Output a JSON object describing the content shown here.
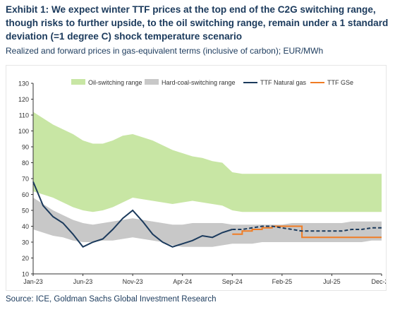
{
  "header": {
    "title": "Exhibit 1: We expect winter TTF prices at the top end of the C2G switching range, though risks to further upside, to the oil switching range, remain under a 1 standard deviation (=1 degree C) shock temperature scenario",
    "subtitle": "Realized and forward prices in gas-equivalent terms (inclusive of carbon); EUR/MWh"
  },
  "footer": {
    "source": "Source: ICE, Goldman Sachs Global Investment Research"
  },
  "colors": {
    "oil": "#c8e6a4",
    "coal": "#c8c8c8",
    "ttf": "#1b3a5c",
    "gse": "#f07c24"
  },
  "chart_data": {
    "type": "line",
    "title": "",
    "xlabel": "",
    "ylabel": "",
    "ylim": [
      10,
      130
    ],
    "yticks": [
      10,
      20,
      30,
      40,
      50,
      60,
      70,
      80,
      90,
      100,
      110,
      120,
      130
    ],
    "xticks": [
      "Jan-23",
      "Jun-23",
      "Nov-23",
      "Apr-24",
      "Sep-24",
      "Feb-25",
      "Jul-25",
      "Dec-25"
    ],
    "grid": false,
    "legend_position": "top",
    "legend": [
      "Oil-switching range",
      "Hard-coal-switching range",
      "TTF Natural gas",
      "TTF GSe"
    ],
    "x": [
      "Jan-23",
      "Feb-23",
      "Mar-23",
      "Apr-23",
      "May-23",
      "Jun-23",
      "Jul-23",
      "Aug-23",
      "Sep-23",
      "Oct-23",
      "Nov-23",
      "Dec-23",
      "Jan-24",
      "Feb-24",
      "Mar-24",
      "Apr-24",
      "May-24",
      "Jun-24",
      "Jul-24",
      "Aug-24",
      "Sep-24",
      "Oct-24",
      "Nov-24",
      "Dec-24",
      "Jan-25",
      "Feb-25",
      "Mar-25",
      "Apr-25",
      "May-25",
      "Jun-25",
      "Jul-25",
      "Aug-25",
      "Sep-25",
      "Oct-25",
      "Nov-25",
      "Dec-25"
    ],
    "series": [
      {
        "name": "Oil-switching range",
        "kind": "band",
        "low": [
          62,
          60,
          58,
          55,
          52,
          50,
          49,
          50,
          52,
          55,
          58,
          57,
          56,
          55,
          54,
          55,
          56,
          55,
          54,
          53,
          50,
          49,
          49,
          49,
          49,
          49,
          49,
          49,
          49,
          49,
          49,
          49,
          49,
          49,
          49,
          49
        ],
        "high": [
          112,
          108,
          104,
          101,
          98,
          94,
          92,
          92,
          94,
          97,
          98,
          96,
          94,
          91,
          88,
          86,
          84,
          83,
          81,
          80,
          74,
          73,
          73,
          73,
          73,
          73,
          73,
          73,
          73,
          73,
          73,
          73,
          73,
          73,
          73,
          73
        ]
      },
      {
        "name": "Hard-coal-switching range",
        "kind": "band",
        "low": [
          38,
          36,
          34,
          33,
          31,
          30,
          30,
          31,
          31,
          32,
          33,
          32,
          31,
          30,
          28,
          27,
          27,
          27,
          27,
          28,
          29,
          29,
          29,
          30,
          30,
          30,
          30,
          30,
          30,
          30,
          30,
          30,
          30,
          30,
          31,
          31
        ],
        "high": [
          58,
          54,
          50,
          47,
          44,
          42,
          41,
          42,
          43,
          44,
          45,
          44,
          43,
          42,
          41,
          41,
          42,
          42,
          42,
          42,
          41,
          41,
          41,
          41,
          41,
          41,
          42,
          42,
          42,
          42,
          42,
          42,
          43,
          43,
          43,
          43
        ]
      },
      {
        "name": "TTF Natural gas",
        "kind": "line",
        "values": [
          68,
          53,
          46,
          42,
          35,
          27,
          30,
          32,
          38,
          45,
          50,
          43,
          35,
          30,
          27,
          29,
          31,
          34,
          33,
          36,
          38,
          null,
          null,
          null,
          null,
          null,
          null,
          null,
          null,
          null,
          null,
          null,
          null,
          null,
          null,
          null
        ],
        "forward": [
          null,
          null,
          null,
          null,
          null,
          null,
          null,
          null,
          null,
          null,
          null,
          null,
          null,
          null,
          null,
          null,
          null,
          null,
          null,
          null,
          38,
          38,
          39,
          40,
          40,
          39,
          38,
          37,
          37,
          37,
          37,
          37,
          38,
          38,
          39,
          39
        ]
      },
      {
        "name": "TTF GSe",
        "kind": "step",
        "values": [
          null,
          null,
          null,
          null,
          null,
          null,
          null,
          null,
          null,
          null,
          null,
          null,
          null,
          null,
          null,
          null,
          null,
          null,
          null,
          null,
          35,
          37,
          38,
          39,
          40,
          40,
          40,
          33,
          33,
          33,
          33,
          33,
          33,
          33,
          33,
          33
        ]
      }
    ]
  }
}
